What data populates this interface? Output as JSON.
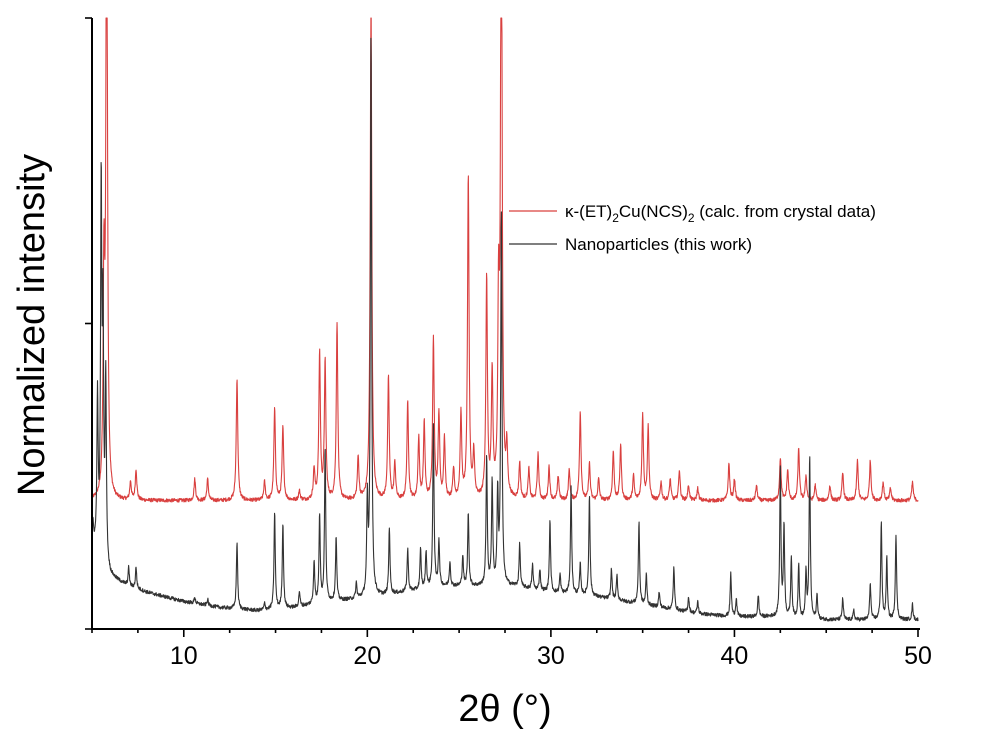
{
  "chart_data": {
    "type": "line",
    "title": "",
    "xlabel": "2θ (°)",
    "ylabel": "Normalized intensity",
    "xlim": [
      5,
      50
    ],
    "ylim": [
      0,
      2
    ],
    "x_ticks": [
      10,
      20,
      30,
      40,
      50
    ],
    "y_ticks": [
      0,
      1,
      2
    ],
    "y_tick_labels_shown": false,
    "grid": false,
    "legend_position": "right",
    "legend": {
      "red_main": "κ-(ET)",
      "red_sub1": "2",
      "red_mid": "Cu(NCS)",
      "red_sub2": "2",
      "red_tail": " (calc. from crystal data)",
      "black": "Nanoparticles (this work)"
    },
    "series": [
      {
        "name": "κ-(ET)2Cu(NCS)2 (calc. from crystal data)",
        "color": "#d9403f",
        "baseline": 0.42,
        "peak_width": 0.05,
        "peaks": [
          [
            5.8,
            2.2
          ],
          [
            5.65,
            0.7
          ],
          [
            7.1,
            0.06
          ],
          [
            7.4,
            0.1
          ],
          [
            10.6,
            0.07
          ],
          [
            11.3,
            0.07
          ],
          [
            12.9,
            0.4
          ],
          [
            14.4,
            0.06
          ],
          [
            14.95,
            0.3
          ],
          [
            15.4,
            0.24
          ],
          [
            16.3,
            0.03
          ],
          [
            17.1,
            0.1
          ],
          [
            17.4,
            0.48
          ],
          [
            17.7,
            0.45
          ],
          [
            18.35,
            0.58
          ],
          [
            19.5,
            0.14
          ],
          [
            20.2,
            1.65
          ],
          [
            21.15,
            0.4
          ],
          [
            21.5,
            0.12
          ],
          [
            22.2,
            0.32
          ],
          [
            22.8,
            0.2
          ],
          [
            23.1,
            0.25
          ],
          [
            23.6,
            0.53
          ],
          [
            23.9,
            0.28
          ],
          [
            24.2,
            0.2
          ],
          [
            24.7,
            0.1
          ],
          [
            25.1,
            0.28
          ],
          [
            25.5,
            1.06
          ],
          [
            25.8,
            0.15
          ],
          [
            26.5,
            0.72
          ],
          [
            26.8,
            0.4
          ],
          [
            27.3,
            2.2
          ],
          [
            27.15,
            0.6
          ],
          [
            27.6,
            0.15
          ],
          [
            28.3,
            0.12
          ],
          [
            28.8,
            0.1
          ],
          [
            29.3,
            0.15
          ],
          [
            29.9,
            0.11
          ],
          [
            30.4,
            0.08
          ],
          [
            31.0,
            0.1
          ],
          [
            31.6,
            0.29
          ],
          [
            32.1,
            0.12
          ],
          [
            32.6,
            0.07
          ],
          [
            33.4,
            0.16
          ],
          [
            33.8,
            0.18
          ],
          [
            34.5,
            0.08
          ],
          [
            35.0,
            0.28
          ],
          [
            35.3,
            0.24
          ],
          [
            36.0,
            0.06
          ],
          [
            36.5,
            0.07
          ],
          [
            37.0,
            0.1
          ],
          [
            37.5,
            0.05
          ],
          [
            38.0,
            0.04
          ],
          [
            39.7,
            0.12
          ],
          [
            40.0,
            0.07
          ],
          [
            41.2,
            0.05
          ],
          [
            42.5,
            0.14
          ],
          [
            42.9,
            0.1
          ],
          [
            43.5,
            0.17
          ],
          [
            43.9,
            0.08
          ],
          [
            44.4,
            0.05
          ],
          [
            45.2,
            0.05
          ],
          [
            45.9,
            0.09
          ],
          [
            46.7,
            0.13
          ],
          [
            47.4,
            0.13
          ],
          [
            48.1,
            0.06
          ],
          [
            48.5,
            0.04
          ],
          [
            49.7,
            0.06
          ]
        ]
      },
      {
        "name": "Nanoparticles (this work)",
        "color": "#333333",
        "peak_width": 0.04,
        "background": [
          [
            5.0,
            0.28
          ],
          [
            5.5,
            0.22
          ],
          [
            6.0,
            0.17
          ],
          [
            7.0,
            0.14
          ],
          [
            8.0,
            0.12
          ],
          [
            10.0,
            0.09
          ],
          [
            12.0,
            0.07
          ],
          [
            14.0,
            0.06
          ],
          [
            16.0,
            0.07
          ],
          [
            18.0,
            0.09
          ],
          [
            20.0,
            0.1
          ],
          [
            22.0,
            0.12
          ],
          [
            24.0,
            0.14
          ],
          [
            26.0,
            0.14
          ],
          [
            28.0,
            0.14
          ],
          [
            30.0,
            0.12
          ],
          [
            32.0,
            0.11
          ],
          [
            34.0,
            0.09
          ],
          [
            36.0,
            0.07
          ],
          [
            38.0,
            0.05
          ],
          [
            40.0,
            0.04
          ],
          [
            42.0,
            0.04
          ],
          [
            44.0,
            0.03
          ],
          [
            46.0,
            0.03
          ],
          [
            48.0,
            0.03
          ],
          [
            50.0,
            0.03
          ]
        ],
        "peaks": [
          [
            5.05,
            0.06
          ],
          [
            5.3,
            0.5
          ],
          [
            5.5,
            1.2
          ],
          [
            5.6,
            0.75
          ],
          [
            5.75,
            0.6
          ],
          [
            7.0,
            0.06
          ],
          [
            7.4,
            0.07
          ],
          [
            10.6,
            0.02
          ],
          [
            11.3,
            0.02
          ],
          [
            12.9,
            0.22
          ],
          [
            14.4,
            0.02
          ],
          [
            14.95,
            0.32
          ],
          [
            15.4,
            0.28
          ],
          [
            16.3,
            0.05
          ],
          [
            17.1,
            0.14
          ],
          [
            17.4,
            0.29
          ],
          [
            17.7,
            0.5
          ],
          [
            18.3,
            0.21
          ],
          [
            19.4,
            0.05
          ],
          [
            20.2,
            1.85
          ],
          [
            20.0,
            0.3
          ],
          [
            21.2,
            0.22
          ],
          [
            22.2,
            0.14
          ],
          [
            22.9,
            0.13
          ],
          [
            23.2,
            0.12
          ],
          [
            23.6,
            0.53
          ],
          [
            23.9,
            0.15
          ],
          [
            24.5,
            0.08
          ],
          [
            25.2,
            0.1
          ],
          [
            25.5,
            0.24
          ],
          [
            26.5,
            0.42
          ],
          [
            26.8,
            0.34
          ],
          [
            27.3,
            1.23
          ],
          [
            27.1,
            0.3
          ],
          [
            28.3,
            0.14
          ],
          [
            29.0,
            0.08
          ],
          [
            29.4,
            0.07
          ],
          [
            29.95,
            0.23
          ],
          [
            30.5,
            0.06
          ],
          [
            31.1,
            0.35
          ],
          [
            31.6,
            0.1
          ],
          [
            32.1,
            0.33
          ],
          [
            33.3,
            0.1
          ],
          [
            33.6,
            0.08
          ],
          [
            34.8,
            0.27
          ],
          [
            35.2,
            0.1
          ],
          [
            35.9,
            0.05
          ],
          [
            36.7,
            0.14
          ],
          [
            37.5,
            0.05
          ],
          [
            38.0,
            0.04
          ],
          [
            39.8,
            0.14
          ],
          [
            40.1,
            0.06
          ],
          [
            41.3,
            0.07
          ],
          [
            42.5,
            0.48
          ],
          [
            42.7,
            0.3
          ],
          [
            43.1,
            0.2
          ],
          [
            43.5,
            0.18
          ],
          [
            43.9,
            0.15
          ],
          [
            44.1,
            0.53
          ],
          [
            44.5,
            0.08
          ],
          [
            45.9,
            0.07
          ],
          [
            46.5,
            0.03
          ],
          [
            47.4,
            0.12
          ],
          [
            48.0,
            0.32
          ],
          [
            48.3,
            0.2
          ],
          [
            48.8,
            0.28
          ],
          [
            49.7,
            0.05
          ]
        ]
      }
    ]
  }
}
